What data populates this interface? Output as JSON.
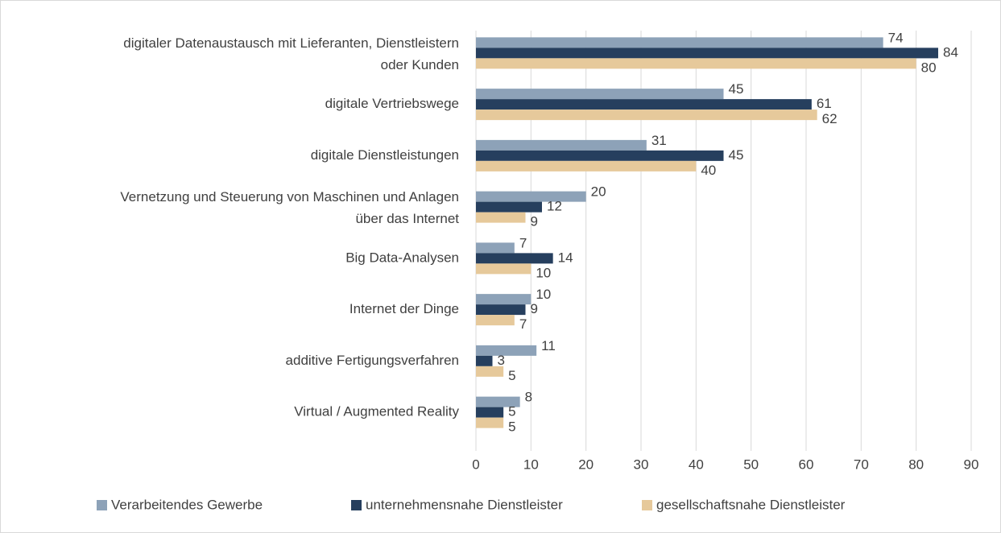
{
  "chart_data": {
    "type": "bar",
    "orientation": "horizontal",
    "categories": [
      [
        "digitaler Datenaustausch mit Lieferanten, Dienstleistern",
        "oder Kunden"
      ],
      [
        "digitale Vertriebswege"
      ],
      [
        "digitale Dienstleistungen"
      ],
      [
        "Vernetzung und Steuerung von Maschinen und Anlagen",
        "über das Internet"
      ],
      [
        "Big Data-Analysen"
      ],
      [
        "Internet der Dinge"
      ],
      [
        "additive Fertigungsverfahren"
      ],
      [
        "Virtual / Augmented Reality"
      ]
    ],
    "series": [
      {
        "name": "Verarbeitendes Gewerbe",
        "color": "#8da2b8",
        "values": [
          74,
          45,
          31,
          20,
          7,
          10,
          11,
          8
        ]
      },
      {
        "name": "unternehmensnahe Dienstleister",
        "color": "#263f5e",
        "values": [
          84,
          61,
          45,
          12,
          14,
          9,
          3,
          5
        ]
      },
      {
        "name": "gesellschaftsnahe Dienstleister",
        "color": "#e6c99b",
        "values": [
          80,
          62,
          40,
          9,
          10,
          7,
          5,
          5
        ]
      }
    ],
    "xlim": [
      0,
      90
    ],
    "xticks": [
      0,
      10,
      20,
      30,
      40,
      50,
      60,
      70,
      80,
      90
    ],
    "grid": true,
    "legend": "bottom"
  }
}
